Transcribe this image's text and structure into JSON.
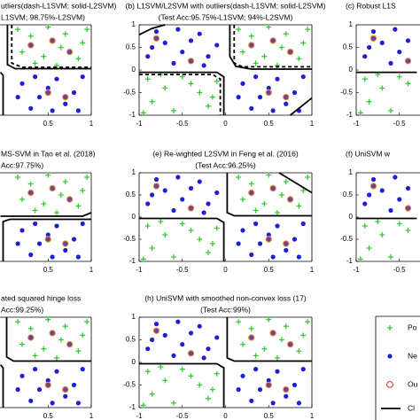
{
  "chart_data": {
    "type": "scatter",
    "xlim": [
      -1,
      1
    ],
    "ylim": [
      -1,
      1
    ],
    "xticks": [
      -1,
      -0.5,
      0,
      0.5,
      1
    ],
    "yticks": [
      -1,
      -0.5,
      0,
      0.5,
      1
    ],
    "series": [
      {
        "name": "Po",
        "color": "#33cc33",
        "marker": "plus",
        "x": [
          0.15,
          0.3,
          0.5,
          0.7,
          0.9,
          0.2,
          0.45,
          0.65,
          0.85,
          0.35,
          0.95,
          0.6,
          -0.9,
          -0.7,
          -0.5,
          -0.3,
          -0.85,
          -0.6,
          -0.2,
          -0.4,
          -0.1,
          -0.75,
          -0.15,
          -0.95
        ],
        "y": [
          0.9,
          0.75,
          0.95,
          0.8,
          0.6,
          0.4,
          0.3,
          0.5,
          0.25,
          0.15,
          0.9,
          0.1,
          -0.2,
          -0.4,
          -0.15,
          -0.5,
          -0.7,
          -0.9,
          -0.8,
          -0.3,
          -0.25,
          -0.1,
          -0.6,
          -0.95
        ]
      },
      {
        "name": "Ne",
        "color": "#1f1fd6",
        "marker": "dot",
        "x": [
          -0.9,
          -0.7,
          -0.5,
          -0.3,
          -0.2,
          -0.6,
          -0.4,
          -0.8,
          -0.1,
          -0.55,
          -0.25,
          -0.85,
          0.2,
          0.4,
          0.6,
          0.8,
          0.3,
          0.5,
          0.7,
          0.9,
          0.15,
          0.55,
          0.35,
          0.85
        ],
        "y": [
          0.3,
          0.6,
          0.4,
          0.8,
          0.3,
          0.15,
          0.65,
          0.85,
          0.55,
          0.9,
          0.1,
          0.5,
          -0.3,
          -0.6,
          -0.2,
          -0.5,
          -0.85,
          -0.4,
          -0.75,
          -0.15,
          -0.6,
          -0.9,
          -0.15,
          -0.9
        ]
      },
      {
        "name": "Ou",
        "color": "#d9a030",
        "fill": "#7d3c98",
        "marker": "ring",
        "x": [
          0.3,
          0.55,
          0.75,
          -0.8,
          0.5,
          -0.4,
          0.7
        ],
        "y": [
          0.55,
          0.65,
          0.4,
          0.7,
          -0.5,
          0.2,
          -0.6
        ]
      }
    ],
    "line_legend": "Cl",
    "panels": [
      {
        "title": "utliers(dash-L1SVM; solid-L2SVM)",
        "subtitle": "L1SVM; 98.75%-L2SVM)",
        "boundaries": [
          {
            "style": "solid",
            "x": [
              0.03,
              0.03,
              0.12,
              1,
              null,
              -0.05,
              -0.02,
              -0.02
            ],
            "y": [
              1,
              0.12,
              0.03,
              0.03,
              null,
              -0.05,
              -0.12,
              -1
            ]
          },
          {
            "style": "dash",
            "x": [
              0.08,
              0.08,
              0.2,
              1
            ],
            "y": [
              1,
              0.15,
              0.06,
              0.06
            ]
          }
        ]
      },
      {
        "title": "(b) L1SVM/L2SVM with outliers(dash-L1SVM; solid-L2SVM)",
        "subtitle": "(Test Acc:95.75%-L1SVM; 94%-L2SVM)",
        "boundaries": [
          {
            "style": "solid",
            "x": [
              -1,
              -0.85,
              -0.7,
              null,
              0.05,
              0.05,
              0.12,
              0.3,
              1,
              null,
              -1,
              -0.1,
              -0.02,
              -0.02,
              null,
              0.75,
              1
            ],
            "y": [
              0.78,
              0.92,
              1,
              null,
              1,
              0.3,
              0.08,
              0.02,
              0.02,
              null,
              -0.05,
              -0.05,
              -0.15,
              -1,
              null,
              -1,
              -0.62
            ]
          },
          {
            "style": "dash",
            "x": [
              0.1,
              0.1,
              0.2,
              1,
              null,
              -1,
              -0.15,
              -0.06,
              -0.06
            ],
            "y": [
              1,
              0.15,
              0.07,
              0.07,
              null,
              -0.1,
              -0.1,
              -0.2,
              -1
            ]
          }
        ]
      },
      {
        "title": "(c) Robust L1S",
        "boundaries": [
          {
            "style": "solid",
            "x": [
              -1,
              -0.3
            ],
            "y": [
              -0.05,
              -0.05
            ]
          }
        ]
      },
      {
        "title": "MS-SVM in Tao et al. (2018)",
        "subtitle": "Acc:97.75%)",
        "boundaries": [
          {
            "style": "solid",
            "x": [
              -0.05,
              0.9,
              1,
              null,
              -0.02,
              -0.02,
              0.06,
              1
            ],
            "y": [
              0.02,
              0.02,
              0.1,
              null,
              -1,
              -0.1,
              -0.05,
              -0.05
            ]
          }
        ]
      },
      {
        "title": "(e) Re-wighted L2SVM in Feng et al. (2016)",
        "subtitle": "(Test Acc:96.25%)",
        "boundaries": [
          {
            "style": "solid",
            "x": [
              0.02,
              0.02,
              0.1,
              1,
              null,
              -1,
              -0.1,
              -0.02,
              -0.02,
              null,
              0.62,
              1
            ],
            "y": [
              1,
              0.1,
              0.03,
              0.03,
              null,
              -0.03,
              -0.03,
              -0.12,
              -1,
              null,
              1,
              0.55
            ]
          }
        ]
      },
      {
        "title": "(f) UniSVM w",
        "boundaries": [
          {
            "style": "solid",
            "x": [
              -1,
              -0.3
            ],
            "y": [
              -0.03,
              -0.03
            ]
          }
        ]
      },
      {
        "title": "ated squared hinge loss",
        "subtitle": "Acc:99.25%)",
        "boundaries": [
          {
            "style": "solid",
            "x": [
              0.02,
              0.02,
              0.1,
              1,
              null,
              -0.05,
              -0.02,
              -0.02
            ],
            "y": [
              1,
              0.12,
              0.03,
              0.03,
              null,
              -0.05,
              -0.12,
              -1
            ]
          }
        ]
      },
      {
        "title": "(h) UniSVM with smoothed non-convex loss (17)",
        "subtitle": "(Test Acc:99%)",
        "boundaries": [
          {
            "style": "solid",
            "x": [
              0.02,
              0.02,
              0.1,
              1,
              null,
              -1,
              -0.1,
              -0.02,
              -0.02
            ],
            "y": [
              1,
              0.1,
              0.03,
              0.03,
              null,
              -0.03,
              -0.03,
              -0.12,
              -1
            ]
          }
        ]
      }
    ]
  }
}
